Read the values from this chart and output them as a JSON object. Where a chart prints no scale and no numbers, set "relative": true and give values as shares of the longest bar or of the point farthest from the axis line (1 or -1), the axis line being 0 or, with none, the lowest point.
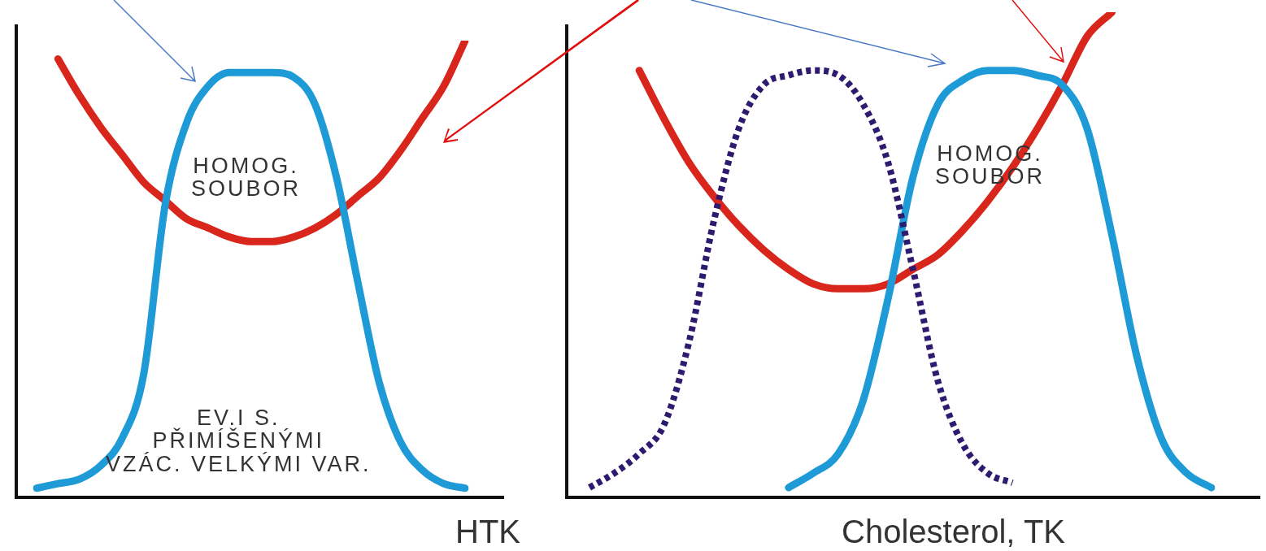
{
  "chart_data": [
    {
      "type": "line",
      "relative": true,
      "xlabel": "HTK",
      "annotations": [
        "HOMOG.\nSOUBOR",
        "EV.I  S.\nPŘIMÍŠENÝMI\nVZÁC. VELKÝMI VAR."
      ],
      "marker": "none",
      "categories": [
        null,
        null,
        null,
        null,
        null,
        null,
        null,
        null,
        null,
        null,
        null,
        null,
        null,
        null,
        null,
        null,
        null,
        null,
        null,
        null,
        null
      ],
      "series": [
        {
          "color": "#1e9ad6",
          "line_style": "solid",
          "values": [
            0.02,
            0.03,
            0.04,
            0.07,
            0.13,
            0.27,
            0.64,
            0.82,
            0.9,
            0.93,
            0.93,
            0.93,
            0.92,
            0.86,
            0.7,
            0.47,
            0.25,
            0.12,
            0.06,
            0.03,
            0.02
          ]
        },
        {
          "color": "#d9261c",
          "line_style": "solid",
          "values": [
            null,
            0.96,
            0.88,
            0.81,
            0.75,
            0.69,
            0.65,
            0.61,
            0.59,
            0.57,
            0.56,
            0.56,
            0.57,
            0.59,
            0.62,
            0.66,
            0.7,
            0.76,
            0.83,
            0.9,
            1.0
          ]
        }
      ]
    },
    {
      "type": "line",
      "relative": true,
      "xlabel": "Cholesterol, TK",
      "annotations": [
        "HOMOG.\nSOUBOR"
      ],
      "marker": "none",
      "categories": [
        null,
        null,
        null,
        null,
        null,
        null,
        null,
        null,
        null,
        null,
        null,
        null,
        null,
        null,
        null,
        null,
        null,
        null,
        null,
        null,
        null,
        null,
        null,
        null,
        null,
        null
      ],
      "series": [
        {
          "color": "#2e1a6e",
          "line_style": "dotted",
          "values": [
            0.02,
            0.05,
            0.09,
            0.15,
            0.32,
            0.57,
            0.76,
            0.85,
            0.87,
            0.88,
            0.87,
            0.81,
            0.69,
            0.47,
            0.24,
            0.11,
            0.05,
            0.03,
            null,
            null,
            null,
            null,
            null,
            null,
            null,
            null
          ]
        },
        {
          "color": "#1e9ad6",
          "line_style": "solid",
          "values": [
            null,
            null,
            null,
            null,
            null,
            null,
            null,
            null,
            0.02,
            0.05,
            0.09,
            0.2,
            0.41,
            0.66,
            0.81,
            0.86,
            0.88,
            0.88,
            0.87,
            0.85,
            0.76,
            0.54,
            0.29,
            0.12,
            0.05,
            0.02
          ]
        },
        {
          "color": "#d9261c",
          "line_style": "solid",
          "values": [
            null,
            null,
            0.88,
            0.78,
            0.69,
            0.62,
            0.56,
            0.51,
            0.47,
            0.44,
            0.43,
            0.43,
            0.44,
            0.47,
            0.5,
            0.55,
            0.61,
            0.68,
            0.76,
            0.85,
            0.95,
            1.0,
            null,
            null,
            null,
            null
          ]
        }
      ]
    }
  ]
}
